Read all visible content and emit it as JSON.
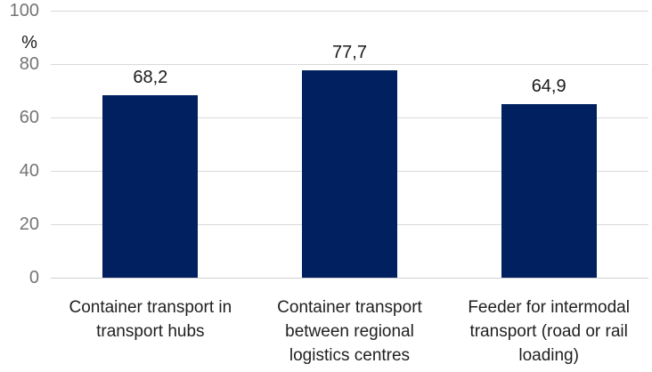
{
  "chart_data": {
    "type": "bar",
    "title": "",
    "categories": [
      "Container transport in transport hubs",
      "Container transport between regional logistics centres",
      "Feeder for intermodal transport (road or rail loading)"
    ],
    "values": [
      68.2,
      77.7,
      64.9
    ],
    "value_labels": [
      "68,2",
      "77,7",
      "64,9"
    ],
    "xlabel": "",
    "ylabel": "%",
    "unit_label": "%",
    "ylim": [
      0,
      100
    ],
    "yticks": [
      0,
      20,
      40,
      60,
      80,
      100
    ],
    "grid": true,
    "legend": false,
    "colors": {
      "bar": "#002060",
      "gridline": "#d9d9d9",
      "tick_label": "#757575",
      "text": "#1a1a1a",
      "background": "#ffffff"
    }
  }
}
